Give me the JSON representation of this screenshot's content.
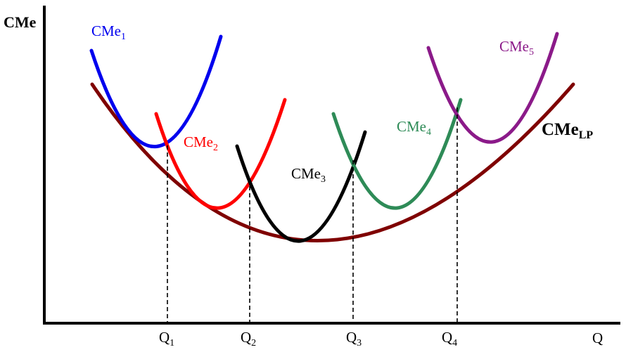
{
  "axes": {
    "y_label": "CMe",
    "x_label": "Q"
  },
  "curves": [
    {
      "key": "cme1",
      "base": "CMe",
      "sub": "1",
      "color": "#0000ee"
    },
    {
      "key": "cme2",
      "base": "CMe",
      "sub": "2",
      "color": "#ff0000"
    },
    {
      "key": "cme3",
      "base": "CMe",
      "sub": "3",
      "color": "#000000"
    },
    {
      "key": "cme4",
      "base": "CMe",
      "sub": "4",
      "color": "#2e8b57"
    },
    {
      "key": "cme5",
      "base": "CMe",
      "sub": "5",
      "color": "#8b1a89"
    }
  ],
  "long_run": {
    "base": "CMe",
    "sub": "LP",
    "color": "#7f0000"
  },
  "quantities": [
    {
      "base": "Q",
      "sub": "1"
    },
    {
      "base": "Q",
      "sub": "2"
    },
    {
      "base": "Q",
      "sub": "3"
    },
    {
      "base": "Q",
      "sub": "4"
    }
  ]
}
